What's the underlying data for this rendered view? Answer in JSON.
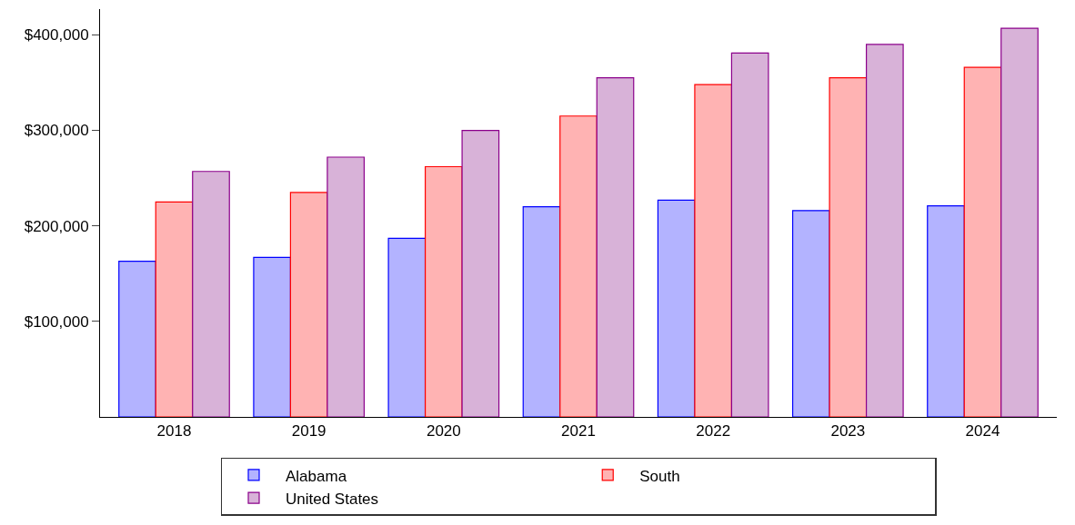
{
  "chart_data": {
    "type": "bar",
    "categories": [
      "2018",
      "2019",
      "2020",
      "2021",
      "2022",
      "2023",
      "2024"
    ],
    "series": [
      {
        "name": "Alabama",
        "color": "#b3b3ff",
        "values": [
          163000,
          167000,
          187000,
          220000,
          227000,
          216000,
          221000
        ]
      },
      {
        "name": "South",
        "color": "#ffb3b3",
        "values": [
          225000,
          235000,
          262000,
          315000,
          348000,
          355000,
          366000
        ]
      },
      {
        "name": "United States",
        "color": "#d8b2d8",
        "values": [
          257000,
          272000,
          300000,
          355000,
          381000,
          390000,
          407000
        ]
      }
    ],
    "ylim": [
      0,
      427000
    ],
    "yticks": [
      {
        "value": 100000,
        "label": "$100,000"
      },
      {
        "value": 200000,
        "label": "$200,000"
      },
      {
        "value": 300000,
        "label": "$300,000"
      },
      {
        "value": 400000,
        "label": "$400,000"
      }
    ],
    "legend": "bottom"
  }
}
